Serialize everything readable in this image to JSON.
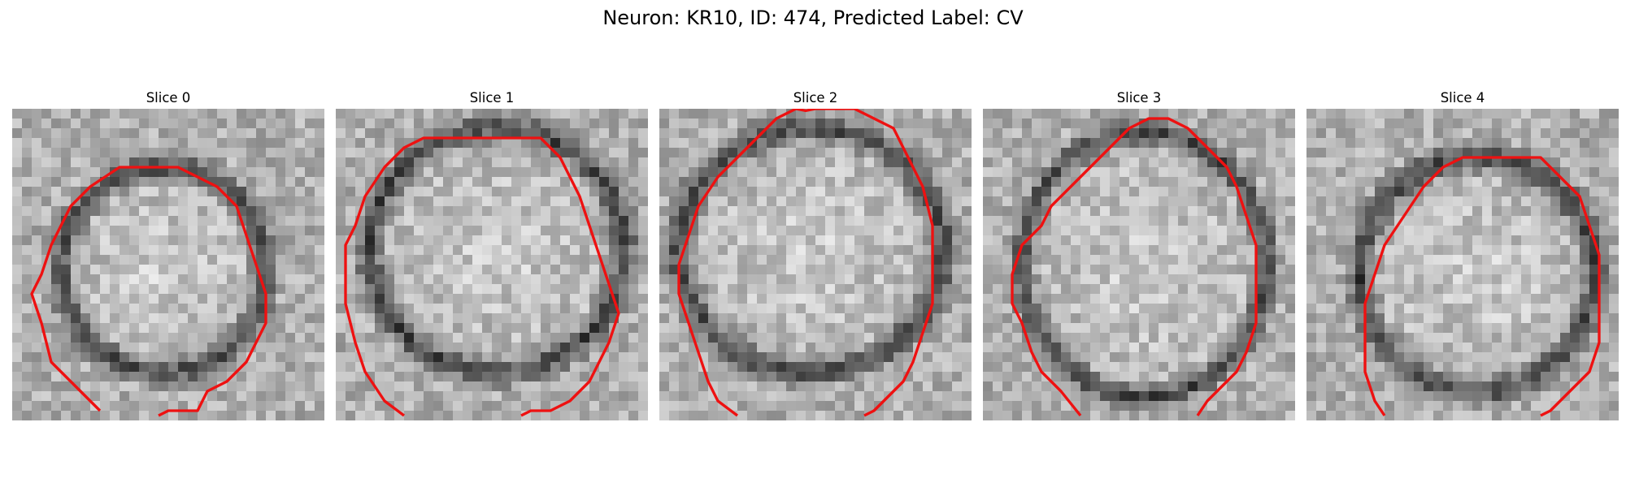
{
  "figure": {
    "title": "Neuron: KR10, ID: 474, Predicted Label: CV"
  },
  "contour_color": "#ee1111",
  "slices": [
    {
      "title": "Slice 0"
    },
    {
      "title": "Slice 1"
    },
    {
      "title": "Slice 2"
    },
    {
      "title": "Slice 3"
    },
    {
      "title": "Slice 4"
    }
  ]
}
